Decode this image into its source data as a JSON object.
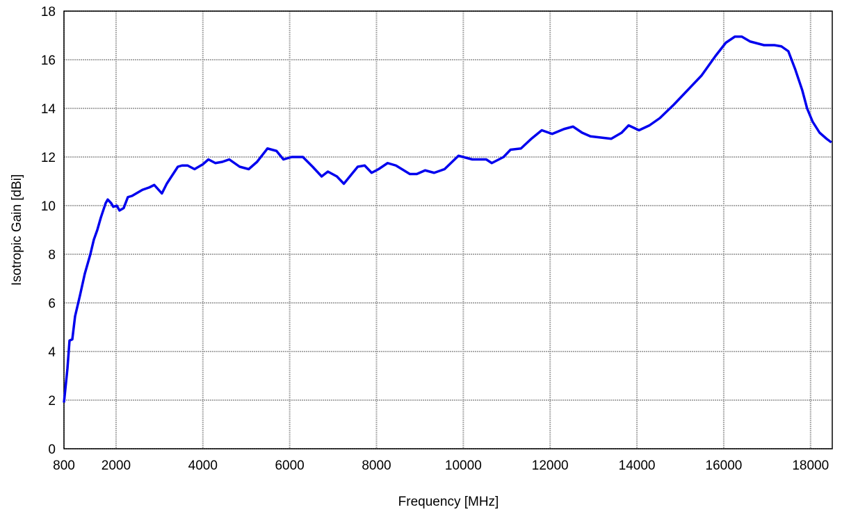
{
  "chart_data": {
    "type": "line",
    "x_label": "Frequency [MHz]",
    "y_label": "Isotropic Gain [dBi]",
    "x": [
      800,
      880,
      928,
      992,
      1056,
      1168,
      1280,
      1408,
      1488,
      1568,
      1648,
      1760,
      1808,
      1888,
      1936,
      2016,
      2080,
      2176,
      2272,
      2368,
      2464,
      2608,
      2768,
      2880,
      3056,
      3168,
      3296,
      3424,
      3520,
      3648,
      3808,
      4000,
      4128,
      4288,
      4448,
      4608,
      4848,
      5056,
      5248,
      5488,
      5696,
      5856,
      6048,
      6304,
      6528,
      6736,
      6880,
      7088,
      7248,
      7568,
      7728,
      7888,
      8048,
      8256,
      8448,
      8768,
      8928,
      9120,
      9328,
      9568,
      9888,
      10208,
      10528,
      10656,
      10928,
      11088,
      11328,
      11568,
      11808,
      12048,
      12320,
      12528,
      12736,
      12928,
      13168,
      13408,
      13648,
      13808,
      14048,
      14288,
      14528,
      14848,
      15168,
      15488,
      15808,
      16048,
      16256,
      16416,
      16608,
      16928,
      17168,
      17328,
      17488,
      17648,
      17808,
      17920,
      18048,
      18208,
      18368,
      18480
    ],
    "values": [
      1.9,
      3.3,
      4.45,
      4.5,
      5.45,
      6.3,
      7.2,
      8.0,
      8.6,
      9.0,
      9.5,
      10.1,
      10.25,
      10.1,
      9.95,
      10.0,
      9.8,
      9.9,
      10.35,
      10.4,
      10.5,
      10.65,
      10.75,
      10.85,
      10.5,
      10.9,
      11.25,
      11.6,
      11.65,
      11.65,
      11.5,
      11.7,
      11.9,
      11.75,
      11.8,
      11.9,
      11.6,
      11.5,
      11.8,
      12.35,
      12.25,
      11.9,
      12.0,
      12.0,
      11.6,
      11.2,
      11.4,
      11.2,
      10.9,
      11.6,
      11.65,
      11.35,
      11.5,
      11.75,
      11.65,
      11.3,
      11.3,
      11.45,
      11.35,
      11.5,
      12.05,
      11.9,
      11.9,
      11.75,
      12.0,
      12.3,
      12.35,
      12.75,
      13.1,
      12.95,
      13.15,
      13.25,
      13.0,
      12.85,
      12.8,
      12.75,
      13.0,
      13.3,
      13.1,
      13.3,
      13.6,
      14.15,
      14.75,
      15.35,
      16.15,
      16.7,
      16.95,
      16.95,
      16.75,
      16.6,
      16.6,
      16.55,
      16.35,
      15.6,
      14.75,
      14.0,
      13.45,
      13.0,
      12.75,
      12.6
    ],
    "color": "#0000ee",
    "xlim": [
      800,
      18500
    ],
    "xticks": [
      800,
      2000,
      4000,
      6000,
      8000,
      10000,
      12000,
      14000,
      16000,
      18000
    ],
    "ylim": [
      0,
      18
    ],
    "yticks": [
      0,
      2,
      4,
      6,
      8,
      10,
      12,
      14,
      16,
      18
    ],
    "grid": true
  }
}
